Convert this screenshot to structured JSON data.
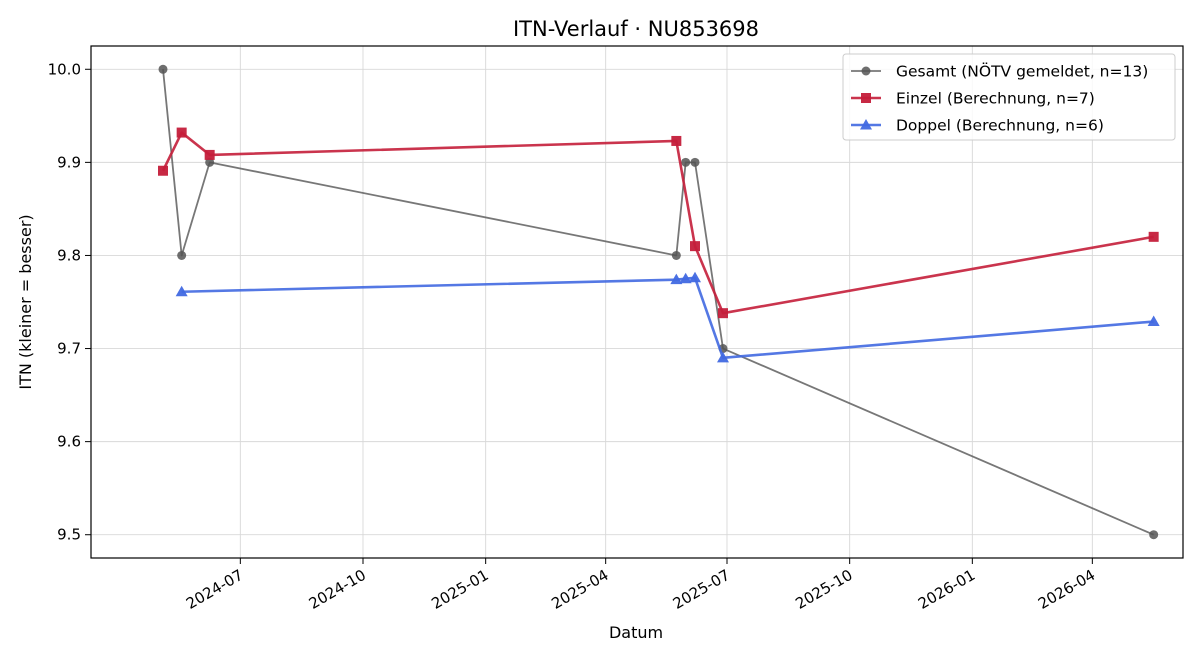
{
  "chart_data": {
    "type": "line",
    "title": "ITN-Verlauf · NU853698",
    "xlabel": "Datum",
    "ylabel": "ITN  (kleiner = besser)",
    "x_is_date": true,
    "xlim": [
      "2024-03-11",
      "2026-06-08"
    ],
    "ylim": [
      9.475,
      10.025
    ],
    "yticks": [
      9.5,
      9.6,
      9.7,
      9.8,
      9.9,
      10.0
    ],
    "ytick_labels": [
      "9.5",
      "9.6",
      "9.7",
      "9.8",
      "9.9",
      "10.0"
    ],
    "xticks": [
      "2024-07-01",
      "2024-10-01",
      "2025-01-01",
      "2025-04-01",
      "2025-07-01",
      "2025-10-01",
      "2026-01-01",
      "2026-04-01"
    ],
    "xtick_labels": [
      "2024-07",
      "2024-10",
      "2025-01",
      "2025-04",
      "2025-07",
      "2025-10",
      "2026-01",
      "2026-04"
    ],
    "grid": true,
    "legend_position": "top-right",
    "series": [
      {
        "name": "Gesamt (NÖTV gemeldet, n=13)",
        "color": "#555555",
        "marker": "circle",
        "points": [
          {
            "x": "2024-05-04",
            "y": 10.0
          },
          {
            "x": "2024-05-18",
            "y": 9.8
          },
          {
            "x": "2024-06-08",
            "y": 9.9
          },
          {
            "x": "2025-05-24",
            "y": 9.8
          },
          {
            "x": "2025-05-31",
            "y": 9.9
          },
          {
            "x": "2025-06-07",
            "y": 9.9
          },
          {
            "x": "2025-06-28",
            "y": 9.7
          },
          {
            "x": "2026-05-17",
            "y": 9.5
          }
        ]
      },
      {
        "name": "Einzel (Berechnung, n=7)",
        "color": "#c41e3a",
        "marker": "square",
        "points": [
          {
            "x": "2024-05-04",
            "y": 9.891
          },
          {
            "x": "2024-05-18",
            "y": 9.932
          },
          {
            "x": "2024-06-08",
            "y": 9.908
          },
          {
            "x": "2025-05-24",
            "y": 9.923
          },
          {
            "x": "2025-06-07",
            "y": 9.81
          },
          {
            "x": "2025-06-28",
            "y": 9.738
          },
          {
            "x": "2026-05-17",
            "y": 9.82
          }
        ]
      },
      {
        "name": "Doppel (Berechnung, n=6)",
        "color": "#4169e1",
        "marker": "triangle",
        "points": [
          {
            "x": "2024-05-18",
            "y": 9.761
          },
          {
            "x": "2025-05-24",
            "y": 9.774
          },
          {
            "x": "2025-05-31",
            "y": 9.775
          },
          {
            "x": "2025-06-07",
            "y": 9.776
          },
          {
            "x": "2025-06-28",
            "y": 9.69
          },
          {
            "x": "2026-05-17",
            "y": 9.729
          }
        ]
      }
    ]
  }
}
